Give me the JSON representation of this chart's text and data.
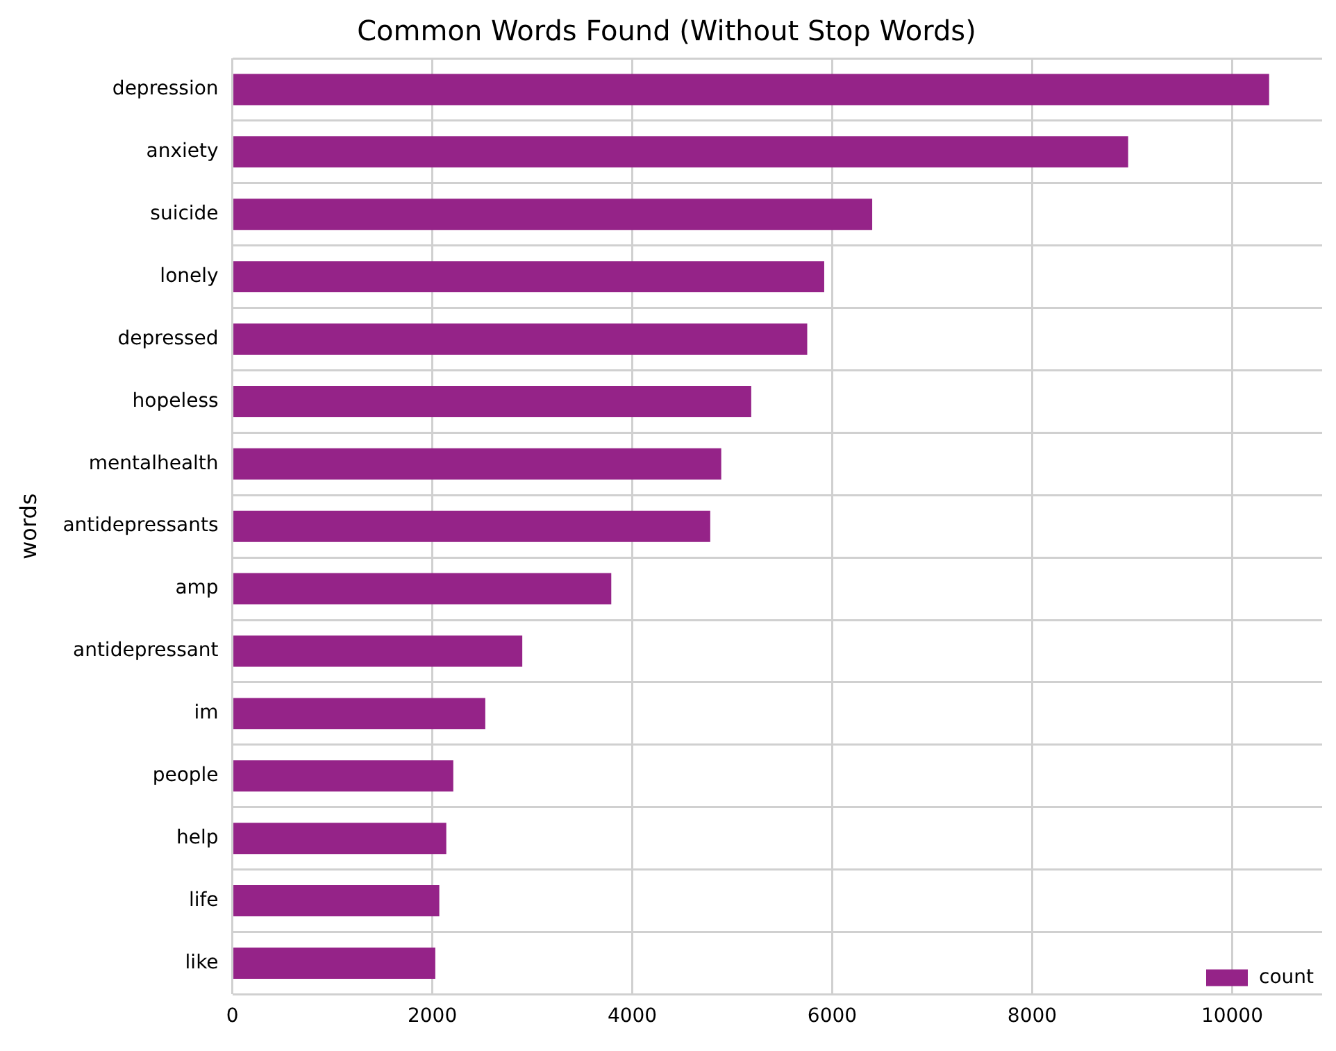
{
  "chart_data": {
    "type": "bar",
    "orientation": "horizontal",
    "title": "Common Words Found (Without Stop Words)",
    "ylabel": "words",
    "categories": [
      "depression",
      "anxiety",
      "suicide",
      "lonely",
      "depressed",
      "hopeless",
      "mentalhealth",
      "antidepressants",
      "amp",
      "antidepressant",
      "im",
      "people",
      "help",
      "life",
      "like"
    ],
    "series": [
      {
        "name": "count",
        "color": "#952388",
        "values": [
          10370,
          8960,
          6400,
          5920,
          5750,
          5190,
          4890,
          4780,
          3790,
          2900,
          2530,
          2210,
          2140,
          2070,
          2030
        ]
      }
    ],
    "xlim": [
      0,
      10900
    ],
    "xticks": [
      0,
      2000,
      4000,
      6000,
      8000,
      10000
    ],
    "grid": true,
    "legend": "bottom right"
  }
}
